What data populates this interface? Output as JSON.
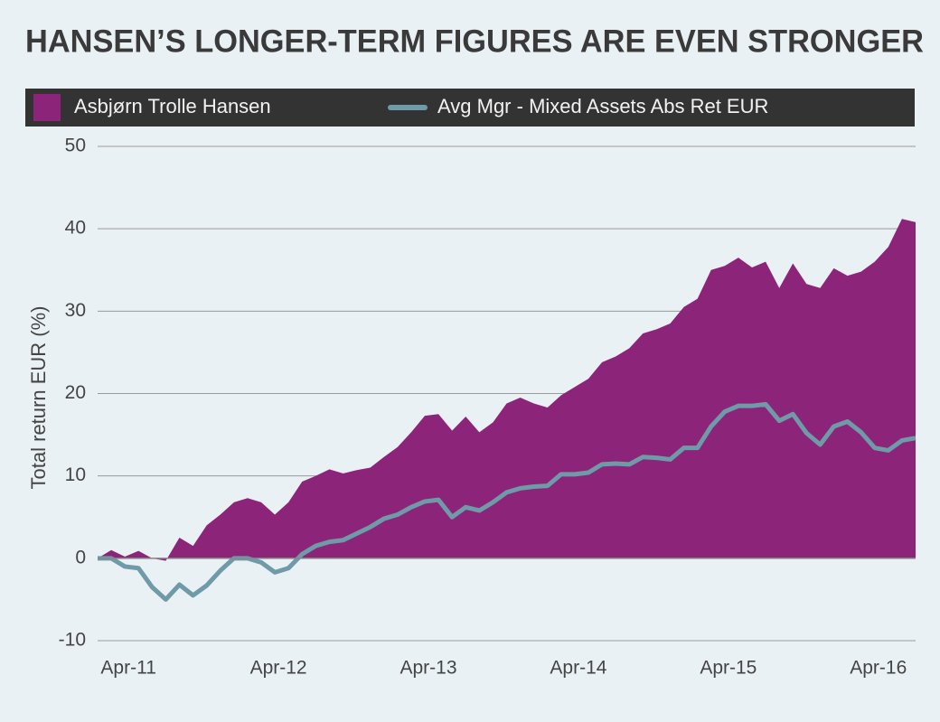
{
  "chart_data": {
    "type": "area-line",
    "title": "HANSEN’S LONGER-TERM FIGURES ARE EVEN STRONGER",
    "y_label": "Total return EUR (%)",
    "categories": [
      null,
      null,
      "Apr-11",
      null,
      null,
      null,
      null,
      null,
      null,
      null,
      null,
      null,
      null,
      "Apr-12",
      null,
      null,
      null,
      null,
      null,
      null,
      null,
      null,
      null,
      null,
      "Apr-13",
      null,
      null,
      null,
      null,
      null,
      null,
      null,
      null,
      null,
      null,
      "Apr-14",
      null,
      null,
      null,
      null,
      null,
      null,
      null,
      null,
      null,
      null,
      "Apr-15",
      null,
      null,
      null,
      null,
      null,
      null,
      null,
      null,
      null,
      null,
      "Apr-16",
      null,
      null,
      null
    ],
    "series": [
      {
        "name": "Asbjørn Trolle Hansen",
        "color": "#8c2479",
        "style": "area",
        "values": [
          0,
          1,
          0.2,
          0.9,
          0,
          -0.3,
          2.5,
          1.5,
          4,
          5.3,
          6.8,
          7.3,
          6.8,
          5.3,
          6.8,
          9.3,
          10,
          10.8,
          10.3,
          10.7,
          11,
          12.3,
          13.5,
          15.3,
          17.3,
          17.5,
          15.5,
          17.2,
          15.3,
          16.5,
          18.8,
          19.5,
          18.8,
          18.3,
          19.8,
          20.8,
          21.8,
          23.8,
          24.5,
          25.5,
          27.3,
          27.8,
          28.5,
          30.5,
          31.5,
          35,
          35.5,
          36.5,
          35.3,
          36,
          32.8,
          35.8,
          33.3,
          32.8,
          35.2,
          34.3,
          34.8,
          36,
          37.8,
          41.2,
          40.8
        ]
      },
      {
        "name": "Avg Mgr - Mixed Assets Abs Ret EUR",
        "color": "#6f9aa8",
        "style": "line",
        "values": [
          0,
          0,
          -1,
          -1.2,
          -3.5,
          -5,
          -3.2,
          -4.5,
          -3.3,
          -1.5,
          0,
          0,
          -0.5,
          -1.7,
          -1.2,
          0.5,
          1.5,
          2,
          2.2,
          3,
          3.8,
          4.8,
          5.3,
          6.2,
          6.9,
          7.1,
          5,
          6.2,
          5.8,
          6.8,
          8,
          8.5,
          8.7,
          8.8,
          10.2,
          10.2,
          10.4,
          11.4,
          11.5,
          11.4,
          12.3,
          12.2,
          12,
          13.4,
          13.4,
          16,
          17.8,
          18.5,
          18.5,
          18.7,
          16.7,
          17.5,
          15.2,
          13.8,
          16,
          16.6,
          15.3,
          13.4,
          13.1,
          14.3,
          14.6
        ]
      }
    ],
    "ylim": [
      -10,
      50
    ],
    "yticks": [
      -10,
      0,
      10,
      20,
      30,
      40,
      50
    ],
    "grid": true
  }
}
